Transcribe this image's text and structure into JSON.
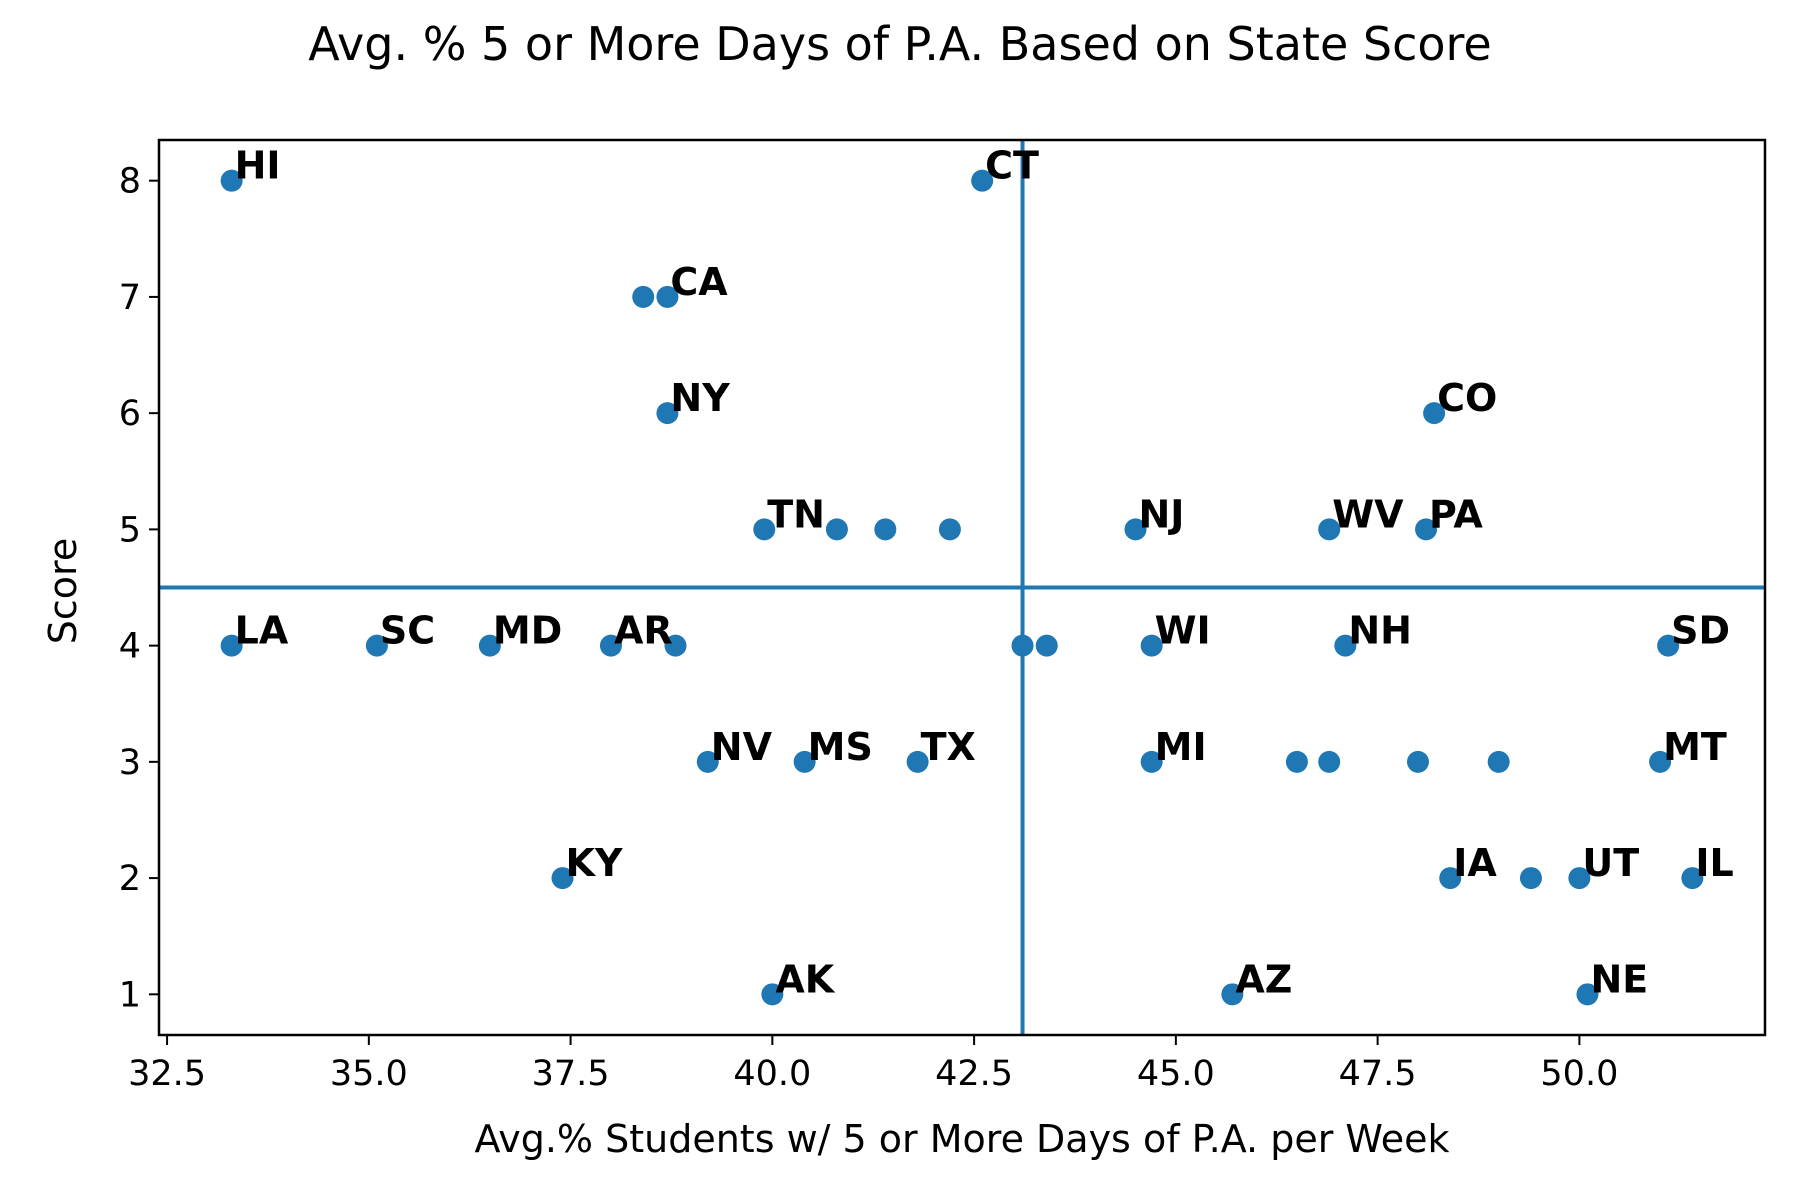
{
  "chart_data": {
    "type": "scatter",
    "title": "Avg. % 5 or More Days of P.A. Based on State Score",
    "xlabel": "Avg.% Students w/ 5 or More Days of P.A. per Week",
    "ylabel": "Score",
    "xlim": [
      32.4,
      52.3
    ],
    "ylim": [
      0.65,
      8.35
    ],
    "xticks": [
      "32.5",
      "35.0",
      "37.5",
      "40.0",
      "42.5",
      "45.0",
      "47.5",
      "50.0"
    ],
    "xtick_values": [
      32.5,
      35.0,
      37.5,
      40.0,
      42.5,
      45.0,
      47.5,
      50.0
    ],
    "yticks": [
      "1",
      "2",
      "3",
      "4",
      "5",
      "6",
      "7",
      "8"
    ],
    "ytick_values": [
      1,
      2,
      3,
      4,
      5,
      6,
      7,
      8
    ],
    "reference_lines": {
      "vertical_x": 43.1,
      "horizontal_y": 4.5,
      "color": "#1f77b4"
    },
    "marker_color": "#1f77b4",
    "grid": false,
    "legend": "none",
    "points": [
      {
        "x": 33.3,
        "y": 8,
        "label": "HI"
      },
      {
        "x": 42.6,
        "y": 8,
        "label": "CT"
      },
      {
        "x": 38.4,
        "y": 7,
        "label": ""
      },
      {
        "x": 38.7,
        "y": 7,
        "label": "CA"
      },
      {
        "x": 38.7,
        "y": 6,
        "label": "NY"
      },
      {
        "x": 48.2,
        "y": 6,
        "label": "CO"
      },
      {
        "x": 39.9,
        "y": 5,
        "label": "TN"
      },
      {
        "x": 40.8,
        "y": 5,
        "label": ""
      },
      {
        "x": 41.4,
        "y": 5,
        "label": ""
      },
      {
        "x": 42.2,
        "y": 5,
        "label": ""
      },
      {
        "x": 44.5,
        "y": 5,
        "label": "NJ"
      },
      {
        "x": 46.9,
        "y": 5,
        "label": "WV"
      },
      {
        "x": 48.1,
        "y": 5,
        "label": "PA"
      },
      {
        "x": 33.3,
        "y": 4,
        "label": "LA"
      },
      {
        "x": 35.1,
        "y": 4,
        "label": "SC"
      },
      {
        "x": 36.5,
        "y": 4,
        "label": "MD"
      },
      {
        "x": 38.0,
        "y": 4,
        "label": "AR"
      },
      {
        "x": 38.8,
        "y": 4,
        "label": ""
      },
      {
        "x": 43.1,
        "y": 4,
        "label": ""
      },
      {
        "x": 43.4,
        "y": 4,
        "label": ""
      },
      {
        "x": 44.7,
        "y": 4,
        "label": "WI"
      },
      {
        "x": 47.1,
        "y": 4,
        "label": "NH"
      },
      {
        "x": 51.1,
        "y": 4,
        "label": "SD"
      },
      {
        "x": 39.2,
        "y": 3,
        "label": "NV"
      },
      {
        "x": 40.4,
        "y": 3,
        "label": "MS"
      },
      {
        "x": 41.8,
        "y": 3,
        "label": "TX"
      },
      {
        "x": 44.7,
        "y": 3,
        "label": "MI"
      },
      {
        "x": 46.5,
        "y": 3,
        "label": ""
      },
      {
        "x": 46.9,
        "y": 3,
        "label": ""
      },
      {
        "x": 48.0,
        "y": 3,
        "label": ""
      },
      {
        "x": 49.0,
        "y": 3,
        "label": ""
      },
      {
        "x": 51.0,
        "y": 3,
        "label": "MT"
      },
      {
        "x": 37.4,
        "y": 2,
        "label": "KY"
      },
      {
        "x": 48.4,
        "y": 2,
        "label": "IA"
      },
      {
        "x": 49.4,
        "y": 2,
        "label": ""
      },
      {
        "x": 50.0,
        "y": 2,
        "label": "UT"
      },
      {
        "x": 51.4,
        "y": 2,
        "label": "IL"
      },
      {
        "x": 40.0,
        "y": 1,
        "label": "AK"
      },
      {
        "x": 45.7,
        "y": 1,
        "label": "AZ"
      },
      {
        "x": 50.1,
        "y": 1,
        "label": "NE"
      }
    ]
  }
}
